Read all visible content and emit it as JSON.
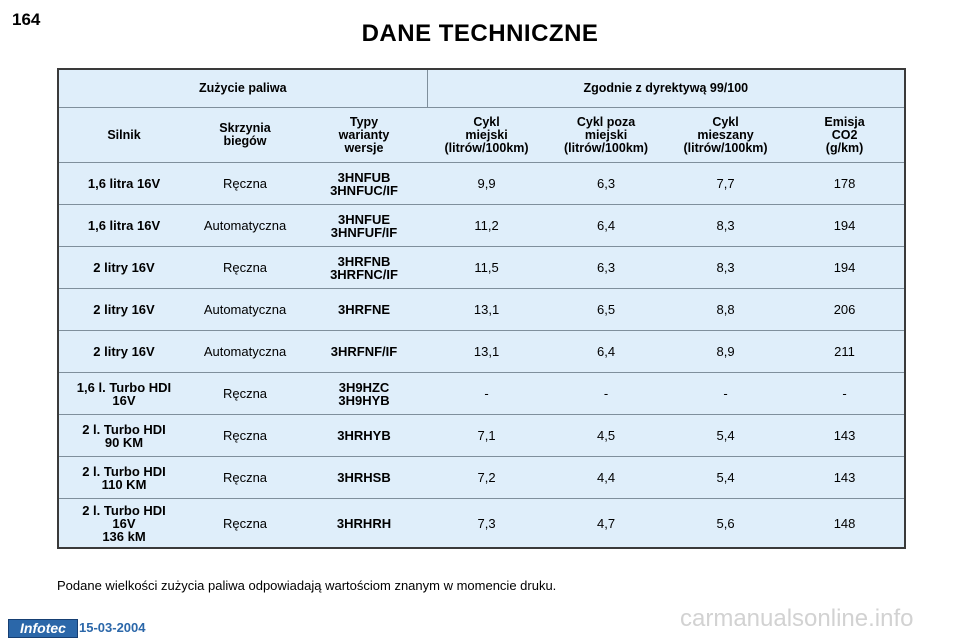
{
  "page": {
    "number": "164",
    "title": "DANE TECHNICZNE",
    "footnote": "Podane wielkości zużycia paliwa odpowiadają wartościom znanym w momencie druku.",
    "footer_logo": "Infotec",
    "footer_date": "15-03-2004",
    "watermark": "carmanualsonline.info"
  },
  "table": {
    "group_left": "Zużycie paliwa",
    "group_right": "Zgodnie z dyrektywą 99/100",
    "columns": [
      "Silnik",
      "Skrzynia\nbiegów",
      "Typy\nwarianty\nwersje",
      "Cykl\nmiejski\n(litrów/100km)",
      "Cykl poza\nmiejski\n(litrów/100km)",
      "Cykl\nmieszany\n(litrów/100km)",
      "Emisja\nCO2\n(g/km)"
    ],
    "rows": [
      [
        "1,6 litra 16V",
        "Ręczna",
        "3HNFUB\n3HNFUC/IF",
        "9,9",
        "6,3",
        "7,7",
        "178"
      ],
      [
        "1,6 litra 16V",
        "Automatyczna",
        "3HNFUE\n3HNFUF/IF",
        "11,2",
        "6,4",
        "8,3",
        "194"
      ],
      [
        "2 litry 16V",
        "Ręczna",
        "3HRFNB\n3HRFNC/IF",
        "11,5",
        "6,3",
        "8,3",
        "194"
      ],
      [
        "2 litry 16V",
        "Automatyczna",
        "3HRFNE",
        "13,1",
        "6,5",
        "8,8",
        "206"
      ],
      [
        "2 litry 16V",
        "Automatyczna",
        "3HRFNF/IF",
        "13,1",
        "6,4",
        "8,9",
        "211"
      ],
      [
        "1,6 l. Turbo HDI\n16V",
        "Ręczna",
        "3H9HZC\n3H9HYB",
        "-",
        "-",
        "-",
        "-"
      ],
      [
        "2 l. Turbo HDI\n90 KM",
        "Ręczna",
        "3HRHYB",
        "7,1",
        "4,5",
        "5,4",
        "143"
      ],
      [
        "2 l. Turbo HDI\n110 KM",
        "Ręczna",
        "3HRHSB",
        "7,2",
        "4,4",
        "5,4",
        "143"
      ],
      [
        "2 l. Turbo HDI\n16V\n136 kM",
        "Ręczna",
        "3HRHRH",
        "7,3",
        "4,7",
        "5,6",
        "148"
      ]
    ]
  }
}
